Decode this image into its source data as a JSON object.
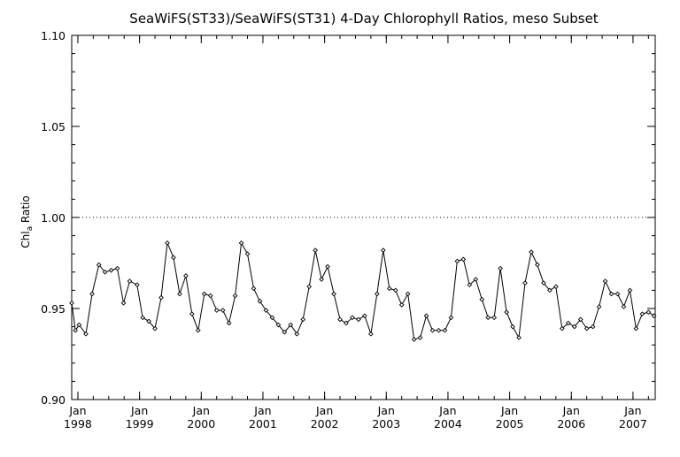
{
  "chart_data": {
    "type": "line",
    "title": "SeaWiFS(ST33)/SeaWiFS(ST31) 4-Day Chlorophyll Ratios, meso Subset",
    "xlabel": "",
    "ylabel": "Chl_a Ratio",
    "ylabel_main": "Chl",
    "ylabel_sub": "a",
    "ylabel_rest": " Ratio",
    "xlim": [
      1997.9,
      2007.36
    ],
    "ylim": [
      0.9,
      1.1
    ],
    "yticks": [
      "0.90",
      "0.95",
      "1.00",
      "1.05",
      "1.10"
    ],
    "ytick_values": [
      0.9,
      0.95,
      1.0,
      1.05,
      1.1
    ],
    "xticks": [
      {
        "month": "Jan",
        "year": "1998",
        "value": 1998.0
      },
      {
        "month": "Jan",
        "year": "1999",
        "value": 1999.0
      },
      {
        "month": "Jan",
        "year": "2000",
        "value": 2000.0
      },
      {
        "month": "Jan",
        "year": "2001",
        "value": 2001.0
      },
      {
        "month": "Jan",
        "year": "2002",
        "value": 2002.0
      },
      {
        "month": "Jan",
        "year": "2003",
        "value": 2003.0
      },
      {
        "month": "Jan",
        "year": "2004",
        "value": 2004.0
      },
      {
        "month": "Jan",
        "year": "2005",
        "value": 2005.0
      },
      {
        "month": "Jan",
        "year": "2006",
        "value": 2006.0
      },
      {
        "month": "Jan",
        "year": "2007",
        "value": 2007.0
      }
    ],
    "reference_line": {
      "y": 1.0,
      "style": "dotted"
    },
    "grid": false,
    "series": [
      {
        "marker": "diamond",
        "color": "#000000",
        "x": [
          1997.9,
          1997.96,
          1998.02,
          1998.13,
          1998.23,
          1998.34,
          1998.44,
          1998.54,
          1998.64,
          1998.74,
          1998.84,
          1998.96,
          1999.05,
          1999.15,
          1999.25,
          1999.35,
          1999.45,
          1999.55,
          1999.65,
          1999.75,
          1999.85,
          1999.95,
          2000.05,
          2000.15,
          2000.25,
          2000.35,
          2000.45,
          2000.55,
          2000.65,
          2000.75,
          2000.85,
          2000.95,
          2001.05,
          2001.15,
          2001.25,
          2001.35,
          2001.45,
          2001.55,
          2001.65,
          2001.75,
          2001.85,
          2001.95,
          2002.05,
          2002.15,
          2002.25,
          2002.35,
          2002.45,
          2002.55,
          2002.65,
          2002.75,
          2002.85,
          2002.95,
          2003.05,
          2003.15,
          2003.25,
          2003.35,
          2003.45,
          2003.55,
          2003.65,
          2003.75,
          2003.85,
          2003.95,
          2004.05,
          2004.15,
          2004.25,
          2004.35,
          2004.45,
          2004.55,
          2004.65,
          2004.75,
          2004.85,
          2004.95,
          2005.05,
          2005.15,
          2005.25,
          2005.35,
          2005.45,
          2005.55,
          2005.65,
          2005.75,
          2005.85,
          2005.95,
          2006.05,
          2006.15,
          2006.25,
          2006.35,
          2006.45,
          2006.55,
          2006.65,
          2006.75,
          2006.85,
          2006.95,
          2007.05,
          2007.15,
          2007.25,
          2007.34
        ],
        "y": [
          0.953,
          0.938,
          0.941,
          0.936,
          0.958,
          0.974,
          0.97,
          0.971,
          0.972,
          0.953,
          0.965,
          0.963,
          0.945,
          0.943,
          0.939,
          0.956,
          0.986,
          0.978,
          0.958,
          0.968,
          0.947,
          0.938,
          0.958,
          0.957,
          0.949,
          0.949,
          0.942,
          0.957,
          0.986,
          0.98,
          0.961,
          0.954,
          0.949,
          0.945,
          0.941,
          0.937,
          0.941,
          0.936,
          0.944,
          0.962,
          0.982,
          0.966,
          0.973,
          0.958,
          0.944,
          0.942,
          0.945,
          0.944,
          0.946,
          0.936,
          0.958,
          0.982,
          0.961,
          0.96,
          0.952,
          0.958,
          0.933,
          0.934,
          0.946,
          0.938,
          0.938,
          0.938,
          0.945,
          0.976,
          0.977,
          0.963,
          0.966,
          0.955,
          0.945,
          0.945,
          0.972,
          0.948,
          0.94,
          0.934,
          0.964,
          0.981,
          0.974,
          0.964,
          0.96,
          0.962,
          0.939,
          0.942,
          0.94,
          0.944,
          0.939,
          0.94,
          0.951,
          0.965,
          0.958,
          0.958,
          0.951,
          0.96,
          0.939,
          0.947,
          0.948,
          0.946
        ]
      }
    ]
  }
}
